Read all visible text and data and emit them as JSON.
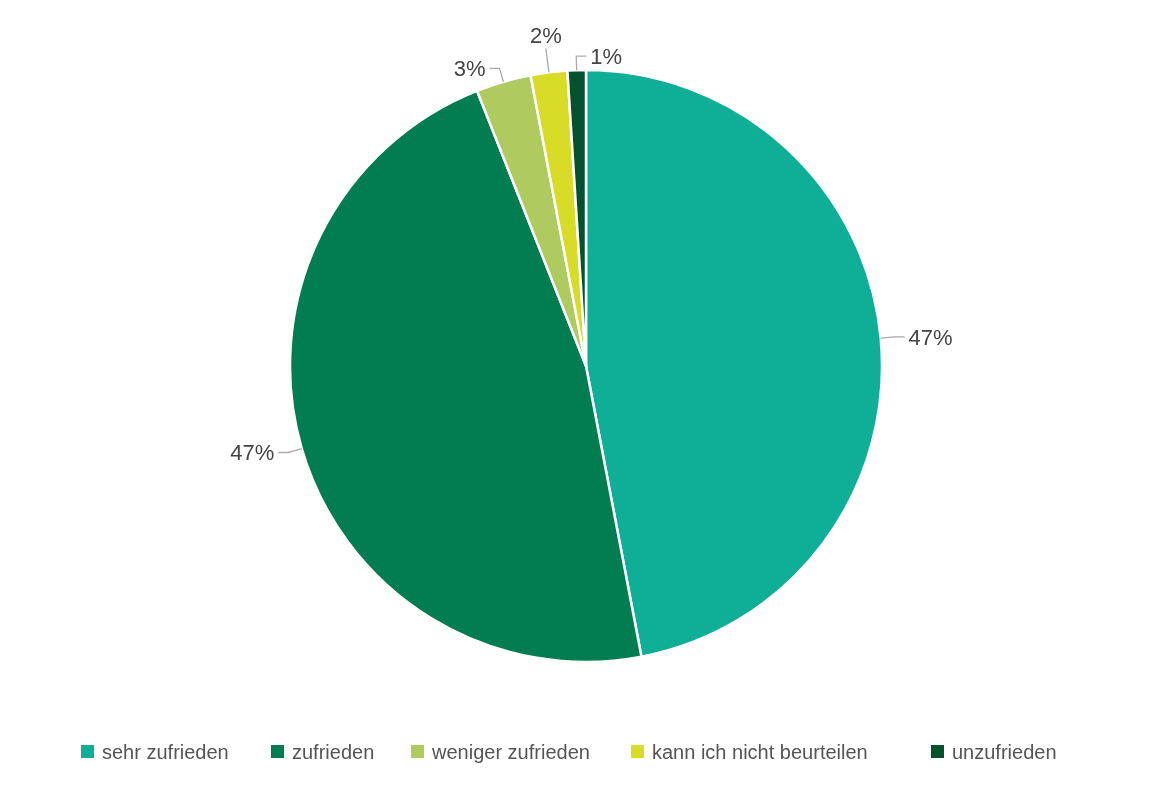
{
  "chart_data": {
    "type": "pie",
    "categories": [
      "sehr zufrieden",
      "zufrieden",
      "weniger zufrieden",
      "kann ich nicht beurteilen",
      "unzufrieden"
    ],
    "values": [
      47,
      47,
      3,
      2,
      1
    ],
    "colors": [
      "#0fae96",
      "#027d51",
      "#afcb5f",
      "#d8dc27",
      "#03512f"
    ],
    "value_labels": [
      "47%",
      "47%",
      "3%",
      "2%",
      "1%"
    ],
    "legend": "bottom"
  }
}
